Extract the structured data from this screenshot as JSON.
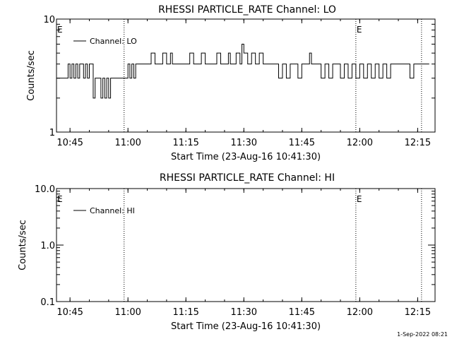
{
  "footer": {
    "timestamp": "1-Sep-2022 08:21"
  },
  "chart_data": [
    {
      "type": "line",
      "title": "RHESSI PARTICLE_RATE Channel: LO",
      "xlabel": "Start Time (23-Aug-16 10:41:30)",
      "ylabel": "Counts/sec",
      "yscale": "log",
      "xlim": [
        "10:41:30",
        "12:19:30"
      ],
      "ylim": [
        1,
        10
      ],
      "x_ticks": [
        "10:45",
        "11:00",
        "11:15",
        "11:30",
        "11:45",
        "12:00",
        "12:15"
      ],
      "y_ticks": [
        "1",
        "10"
      ],
      "markers": [
        {
          "time": "10:41:30",
          "label": "E"
        },
        {
          "time": "11:59:00",
          "label": "E"
        }
      ],
      "vertical_lines": [
        "10:59:00",
        "11:59:00",
        "12:16:00"
      ],
      "legend": {
        "position": "top-left",
        "entries": [
          "Channel: LO"
        ]
      },
      "series": [
        {
          "name": "Channel: LO",
          "x": [
            "10:41:30",
            "10:44:00",
            "10:44:30",
            "10:45:00",
            "10:45:30",
            "10:46:00",
            "10:46:30",
            "10:47:00",
            "10:47:30",
            "10:48:00",
            "10:48:30",
            "10:49:00",
            "10:49:30",
            "10:50:00",
            "10:51:00",
            "10:51:30",
            "10:52:00",
            "10:53:00",
            "10:53:30",
            "10:54:00",
            "10:54:30",
            "10:55:00",
            "10:55:30",
            "10:56:00",
            "10:57:00",
            "10:58:00",
            "10:59:00",
            "11:00:00",
            "11:00:30",
            "11:01:00",
            "11:01:30",
            "11:02:00",
            "11:02:30",
            "11:03:00",
            "11:04:00",
            "11:05:00",
            "11:06:00",
            "11:07:00",
            "11:08:00",
            "11:08:30",
            "11:09:00",
            "11:10:00",
            "11:11:00",
            "11:11:30",
            "11:12:00",
            "11:13:00",
            "11:14:00",
            "11:15:00",
            "11:16:00",
            "11:17:00",
            "11:17:30",
            "11:18:00",
            "11:19:00",
            "11:20:00",
            "11:21:00",
            "11:22:00",
            "11:23:00",
            "11:24:00",
            "11:25:00",
            "11:26:00",
            "11:26:30",
            "11:27:00",
            "11:28:00",
            "11:29:00",
            "11:29:30",
            "11:30:00",
            "11:31:00",
            "11:32:00",
            "11:33:00",
            "11:34:00",
            "11:35:00",
            "11:36:00",
            "11:37:00",
            "11:38:00",
            "11:39:00",
            "11:40:00",
            "11:41:00",
            "11:42:00",
            "11:43:00",
            "11:44:00",
            "11:45:00",
            "11:46:00",
            "11:47:00",
            "11:47:30",
            "11:48:00",
            "11:49:00",
            "11:50:00",
            "11:51:00",
            "11:52:00",
            "11:53:00",
            "11:54:00",
            "11:55:00",
            "11:56:00",
            "11:57:00",
            "11:58:00",
            "11:59:00",
            "12:00:00",
            "12:01:00",
            "12:02:00",
            "12:03:00",
            "12:04:00",
            "12:05:00",
            "12:06:00",
            "12:07:00",
            "12:08:00",
            "12:09:00",
            "12:10:00",
            "12:11:00",
            "12:12:00",
            "12:13:00",
            "12:14:00",
            "12:15:00",
            "12:16:00",
            "12:17:00",
            "12:18:00"
          ],
          "y": [
            3,
            3,
            4,
            3,
            4,
            3,
            4,
            3,
            4,
            4,
            3,
            4,
            3,
            4,
            2,
            3,
            3,
            2,
            3,
            2,
            3,
            2,
            3,
            3,
            3,
            3,
            3,
            4,
            3,
            4,
            3,
            4,
            4,
            4,
            4,
            4,
            5,
            4,
            4,
            4,
            5,
            4,
            5,
            4,
            4,
            4,
            4,
            4,
            5,
            4,
            4,
            4,
            5,
            4,
            4,
            4,
            5,
            4,
            4,
            5,
            4,
            4,
            5,
            4,
            6,
            5,
            4,
            5,
            4,
            5,
            4,
            4,
            4,
            4,
            3,
            4,
            3,
            4,
            4,
            3,
            4,
            4,
            5,
            4,
            4,
            4,
            3,
            4,
            3,
            4,
            4,
            3,
            4,
            3,
            4,
            3,
            4,
            3,
            4,
            3,
            4,
            3,
            4,
            3,
            4,
            4,
            4,
            4,
            4,
            3,
            4,
            4,
            4,
            4,
            4
          ]
        }
      ]
    },
    {
      "type": "line",
      "title": "RHESSI PARTICLE_RATE Channel: HI",
      "xlabel": "Start Time (23-Aug-16 10:41:30)",
      "ylabel": "Counts/sec",
      "yscale": "log",
      "xlim": [
        "10:41:30",
        "12:19:30"
      ],
      "ylim": [
        0.1,
        10.0
      ],
      "x_ticks": [
        "10:45",
        "11:00",
        "11:15",
        "11:30",
        "11:45",
        "12:00",
        "12:15"
      ],
      "y_ticks": [
        "0.1",
        "1.0",
        "10.0"
      ],
      "markers": [
        {
          "time": "10:41:30",
          "label": "E"
        },
        {
          "time": "11:59:00",
          "label": "E"
        }
      ],
      "vertical_lines": [
        "10:59:00",
        "11:59:00",
        "12:16:00"
      ],
      "legend": {
        "position": "top-left",
        "entries": [
          "Channel: HI"
        ]
      },
      "series": [
        {
          "name": "Channel: HI",
          "x": [],
          "y": []
        }
      ]
    }
  ]
}
